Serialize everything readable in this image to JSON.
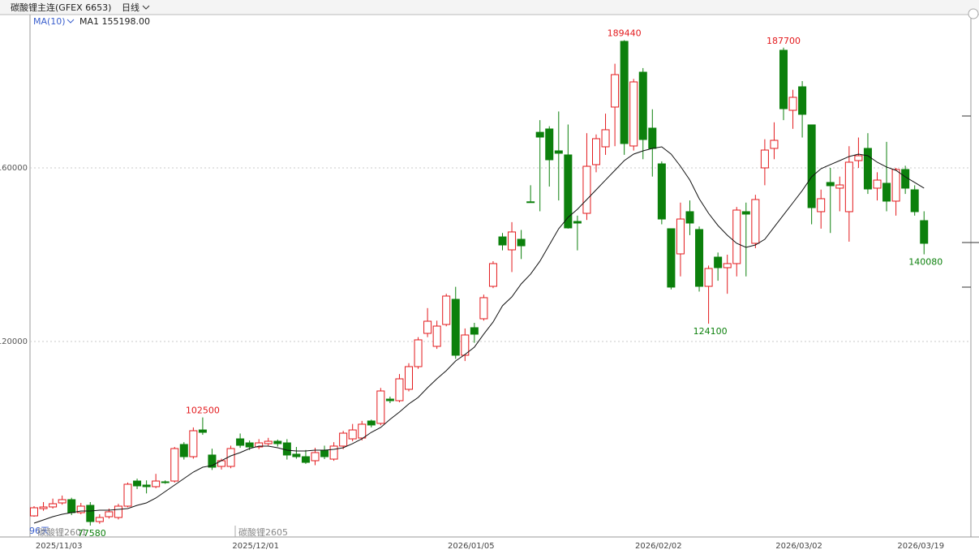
{
  "chart_data": {
    "type": "candlestick",
    "title": "碳酸锂主连(GFEX 6653)",
    "period": "日线",
    "indicator": "MA(10)",
    "ma_label": "MA1 155198.00",
    "contract_labels": [
      "96天",
      "碳酸锂2601",
      "碳酸锂2605"
    ],
    "up_color": "#e3191c",
    "down_color": "#0c800c",
    "ma_color": "#111111",
    "ylim": [
      74960,
      195320
    ],
    "yticks": [
      120000,
      160000
    ],
    "grid": true,
    "categories": [
      null,
      null,
      null,
      "2025/11/03",
      null,
      null,
      null,
      null,
      null,
      null,
      null,
      null,
      null,
      null,
      null,
      null,
      null,
      null,
      null,
      null,
      null,
      null,
      null,
      null,
      "2025/12/01",
      null,
      null,
      null,
      null,
      null,
      null,
      null,
      null,
      null,
      null,
      null,
      null,
      null,
      null,
      null,
      null,
      null,
      null,
      null,
      null,
      null,
      null,
      "2026/01/05",
      null,
      null,
      null,
      null,
      null,
      null,
      null,
      null,
      null,
      null,
      null,
      null,
      null,
      null,
      null,
      null,
      null,
      null,
      null,
      "2026/02/02",
      null,
      null,
      null,
      null,
      null,
      null,
      null,
      null,
      null,
      null,
      null,
      null,
      null,
      null,
      "2026/03/02",
      null,
      null,
      null,
      null,
      null,
      null,
      null,
      null,
      null,
      null,
      null,
      null,
      "2026/03/19"
    ],
    "open": [
      79820,
      81500,
      81880,
      82810,
      83560,
      80570,
      82250,
      78510,
      79630,
      79450,
      82060,
      87850,
      86920,
      86550,
      87670,
      87850,
      96270,
      93460,
      99620,
      93840,
      91220,
      91220,
      97570,
      96640,
      95700,
      96460,
      97010,
      96640,
      94030,
      93460,
      92530,
      94960,
      92900,
      95900,
      97570,
      97760,
      101680,
      101130,
      106730,
      106360,
      108980,
      114210,
      121870,
      118880,
      123920,
      129720,
      116830,
      123180,
      125240,
      132710,
      144100,
      141120,
      143550,
      152190,
      168200,
      168970,
      163930,
      162990,
      147660,
      149530,
      160750,
      164860,
      174020,
      189160,
      165050,
      182050,
      169160,
      160930,
      145980,
      140190,
      149910,
      145800,
      132710,
      139440,
      137010,
      137950,
      149910,
      142620,
      160000,
      164490,
      187100,
      173270,
      178690,
      169910,
      149910,
      156640,
      155330,
      149910,
      161680,
      164490,
      155330,
      156450,
      152340,
      159630,
      154950,
      147850
    ],
    "high": [
      82060,
      83000,
      83800,
      84500,
      84000,
      82800,
      83000,
      80200,
      81500,
      82600,
      87500,
      88400,
      88000,
      89500,
      88000,
      95700,
      96800,
      100200,
      102500,
      95300,
      93000,
      96000,
      98800,
      97200,
      97500,
      97800,
      97400,
      97500,
      95700,
      95000,
      95500,
      96000,
      96800,
      99400,
      101000,
      101700,
      102000,
      109300,
      107300,
      112500,
      115000,
      121000,
      127700,
      124800,
      131000,
      132600,
      123000,
      124300,
      130800,
      138500,
      145000,
      147500,
      145700,
      156000,
      171000,
      169600,
      173000,
      170000,
      149000,
      168000,
      167700,
      172500,
      184000,
      189440,
      180500,
      183000,
      173500,
      161500,
      146000,
      152000,
      152500,
      146500,
      137500,
      140500,
      140000,
      151000,
      152000,
      153800,
      166600,
      170500,
      187700,
      178000,
      180000,
      169910,
      155000,
      160000,
      158000,
      165000,
      167000,
      168000,
      159000,
      166000,
      160000,
      160500,
      156000,
      150000
    ],
    "low": [
      79630,
      81000,
      81500,
      82400,
      80000,
      80200,
      77580,
      78000,
      79200,
      79000,
      81800,
      86000,
      85000,
      86200,
      87200,
      87500,
      92800,
      93000,
      98500,
      90400,
      90500,
      90800,
      95500,
      95000,
      95200,
      96000,
      95800,
      92800,
      93000,
      91800,
      91500,
      92900,
      92500,
      95200,
      97000,
      97200,
      100200,
      100700,
      105800,
      106000,
      108500,
      113700,
      121000,
      118300,
      123500,
      116000,
      115500,
      119700,
      124800,
      132300,
      141000,
      136000,
      139000,
      152000,
      150000,
      155700,
      152500,
      146000,
      141000,
      148000,
      159000,
      163000,
      165000,
      163000,
      164000,
      162000,
      158000,
      147000,
      132000,
      135000,
      144500,
      131500,
      124100,
      134000,
      131000,
      135000,
      135000,
      141500,
      156000,
      162000,
      171000,
      169000,
      167000,
      147000,
      146000,
      145000,
      150000,
      143000,
      160000,
      154000,
      152500,
      150000,
      149000,
      154000,
      149000,
      140080
    ],
    "close": [
      81690,
      81870,
      82620,
      83560,
      80570,
      82060,
      78510,
      79450,
      80760,
      82060,
      87110,
      86730,
      86550,
      87850,
      87480,
      95330,
      93460,
      99440,
      99070,
      91030,
      92530,
      95330,
      96080,
      95700,
      96640,
      97010,
      96460,
      93840,
      93460,
      92150,
      94400,
      93460,
      95900,
      98880,
      99620,
      100940,
      100760,
      108600,
      106360,
      111400,
      114210,
      120380,
      124670,
      123550,
      130470,
      116830,
      121500,
      121680,
      130100,
      137950,
      142240,
      145240,
      142050,
      152000,
      167100,
      161870,
      163370,
      146170,
      147290,
      160370,
      166730,
      168790,
      181490,
      165610,
      179810,
      166540,
      164490,
      148220,
      132530,
      148220,
      147290,
      132710,
      136820,
      137010,
      137950,
      150280,
      149350,
      152710,
      164110,
      166350,
      173640,
      176260,
      172340,
      150840,
      152900,
      155890,
      156070,
      161310,
      162800,
      155140,
      157190,
      152340,
      159630,
      155330,
      149910,
      142620
    ],
    "ma": [
      78140,
      78890,
      79630,
      80200,
      80570,
      80940,
      80940,
      81130,
      81130,
      81310,
      81500,
      82250,
      82810,
      83930,
      85430,
      86920,
      88420,
      89910,
      91030,
      91410,
      92530,
      93650,
      94400,
      95330,
      95890,
      95890,
      95520,
      94960,
      94770,
      94770,
      94960,
      94960,
      95150,
      95520,
      96460,
      97580,
      99070,
      100190,
      102060,
      103740,
      105610,
      107110,
      109350,
      111410,
      113280,
      115520,
      117010,
      118700,
      121690,
      124490,
      128230,
      130280,
      133270,
      135520,
      138510,
      142240,
      145980,
      148600,
      150470,
      152710,
      154950,
      157200,
      159440,
      161680,
      163180,
      163920,
      164490,
      164860,
      163180,
      160370,
      157200,
      152900,
      149530,
      146730,
      144490,
      142620,
      141680,
      142240,
      143550,
      146360,
      149160,
      151960,
      154770,
      157940,
      159810,
      160750,
      161680,
      162620,
      163180,
      162800,
      161310,
      160190,
      159440,
      157940,
      156640,
      155330
    ],
    "high_labels": [
      102500,
      189440,
      187700
    ],
    "low_labels": [
      77580,
      124100,
      140080
    ]
  }
}
